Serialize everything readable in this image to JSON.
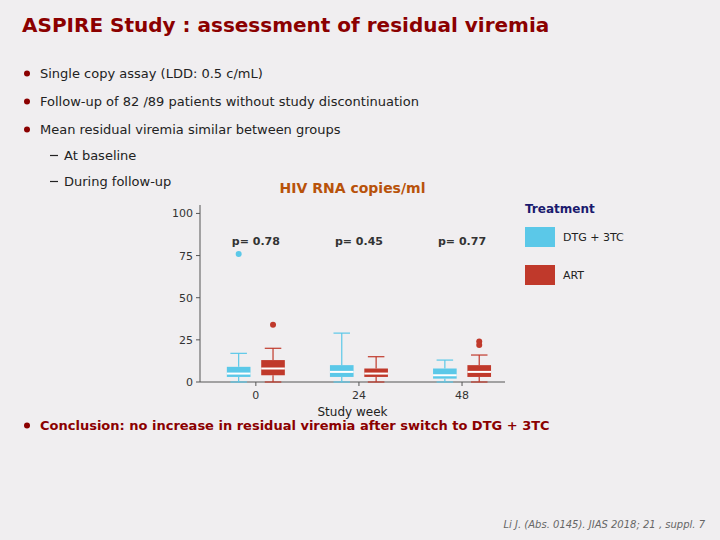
{
  "title": "ASPIRE Study : assessment of residual viremia",
  "bullets": [
    "Single copy assay (LDD: 0.5 c/mL)",
    "Follow-up of 82 /89 patients without study discontinuation",
    "Mean residual viremia similar between groups"
  ],
  "sub_bullets": [
    "At baseline",
    "During follow-up"
  ],
  "conclusion": "Conclusion: no increase in residual viremia after switch to DTG + 3TC",
  "footnote": "Li J. (Abs. 0145). JIAS 2018; 21 , suppl. 7",
  "chart_data": {
    "type": "box",
    "title": "HIV RNA copies/ml",
    "x_label": "Study week",
    "x": [
      0,
      24,
      48
    ],
    "xlim": [
      -13,
      58
    ],
    "xticks": [
      0,
      24,
      48
    ],
    "ylim": [
      0,
      105
    ],
    "yticks": [
      0,
      25,
      50,
      75,
      100
    ],
    "grid": false,
    "legend": "right",
    "legend_title": "Treatment",
    "series": [
      {
        "name": "DTG + 3TC",
        "color": "#5BC8E8",
        "q1": [
          3,
          3,
          2
        ],
        "median": [
          5,
          6,
          4
        ],
        "q3": [
          9,
          10,
          8
        ],
        "whisker_low": [
          0,
          0,
          0
        ],
        "whisker_high": [
          17,
          29,
          13
        ],
        "outliers": [
          [
            76
          ],
          [],
          []
        ]
      },
      {
        "name": "ART",
        "color": "#C0392B",
        "q1": [
          4,
          3,
          3
        ],
        "median": [
          8,
          5,
          6
        ],
        "q3": [
          13,
          8,
          10
        ],
        "whisker_low": [
          0,
          0,
          0
        ],
        "whisker_high": [
          20,
          15,
          16
        ],
        "outliers": [
          [
            34
          ],
          [],
          [
            24,
            22
          ]
        ]
      }
    ],
    "annotations": [
      {
        "x": 0,
        "y": 88,
        "text": "p= 0.78"
      },
      {
        "x": 24,
        "y": 88,
        "text": "p= 0.45"
      },
      {
        "x": 48,
        "y": 88,
        "text": "p= 0.77"
      }
    ]
  }
}
